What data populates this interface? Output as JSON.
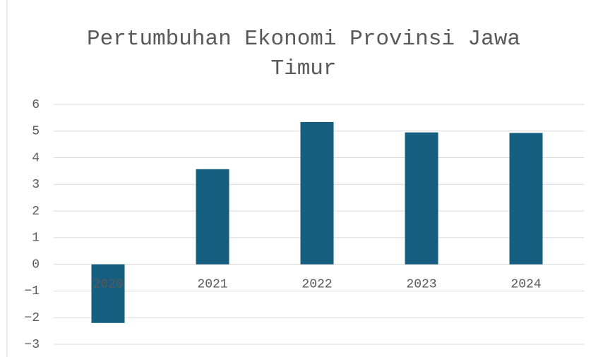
{
  "chart_data": {
    "type": "bar",
    "title": "Pertumbuhan Ekonomi Provinsi Jawa Timur",
    "categories": [
      "2020",
      "2021",
      "2022",
      "2023",
      "2024"
    ],
    "values": [
      -2.2,
      3.57,
      5.34,
      4.95,
      4.93
    ],
    "color": "#165e80",
    "ylim": [
      -3,
      6
    ],
    "yticks": [
      {
        "value": -3,
        "label": "−3"
      },
      {
        "value": -2,
        "label": "−2"
      },
      {
        "value": -1,
        "label": "−1"
      },
      0,
      1,
      2,
      3,
      4,
      5,
      6
    ],
    "grid": true
  }
}
